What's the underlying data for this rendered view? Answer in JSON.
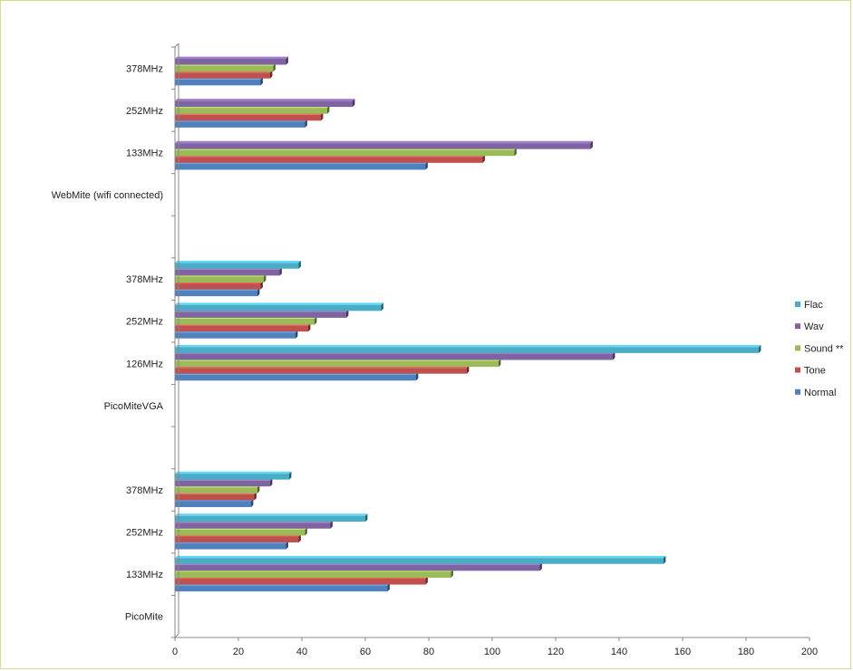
{
  "chart_data": {
    "type": "bar",
    "orientation": "horizontal",
    "title": "",
    "xlabel": "",
    "ylabel": "",
    "xlim": [
      0,
      200
    ],
    "xticks": [
      0,
      20,
      40,
      60,
      80,
      100,
      120,
      140,
      160,
      180,
      200
    ],
    "grid": false,
    "legend_position": "right",
    "categories": [
      "PicoMite",
      "133MHz",
      "252MHz",
      "378MHz",
      "",
      "PicoMiteVGA",
      "126MHz",
      "252MHz",
      "378MHz",
      "",
      "WebMite (wifi connected)",
      "133MHz",
      "252MHz",
      "378MHz"
    ],
    "series": [
      {
        "name": "Normal",
        "color": "#4F81BD",
        "values": [
          null,
          67,
          35,
          24,
          null,
          null,
          76,
          38,
          26,
          null,
          null,
          79,
          41,
          27
        ]
      },
      {
        "name": "Tone",
        "color": "#C0504D",
        "values": [
          null,
          79,
          39,
          25,
          null,
          null,
          92,
          42,
          27,
          null,
          null,
          97,
          46,
          30
        ]
      },
      {
        "name": "Sound **",
        "color": "#9BBB59",
        "values": [
          null,
          87,
          41,
          26,
          null,
          null,
          102,
          44,
          28,
          null,
          null,
          107,
          48,
          31
        ]
      },
      {
        "name": "Wav",
        "color": "#8064A2",
        "values": [
          null,
          115,
          49,
          30,
          null,
          null,
          138,
          54,
          33,
          null,
          null,
          131,
          56,
          35
        ]
      },
      {
        "name": "Flac",
        "color": "#4BACC6",
        "values": [
          null,
          154,
          60,
          36,
          null,
          null,
          184,
          65,
          39,
          null,
          null,
          null,
          null,
          null
        ]
      }
    ]
  }
}
